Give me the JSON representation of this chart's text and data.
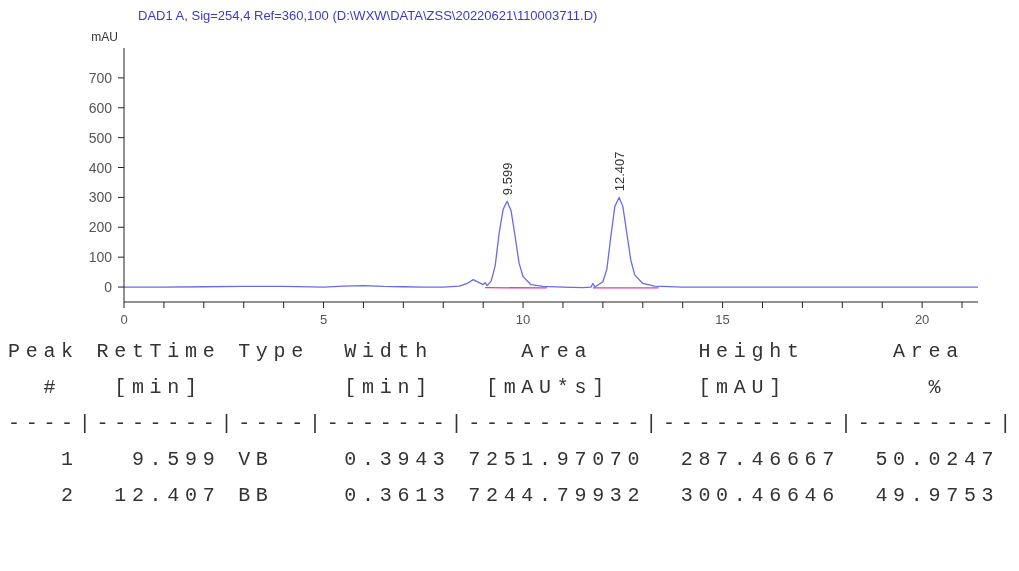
{
  "chart_data": {
    "type": "line",
    "title": "DAD1 A, Sig=254,4 Ref=360,100 (D:\\WXW\\DATA\\ZSS\\20220621\\110003711.D)",
    "ylabel": "mAU",
    "series": [
      {
        "color": "#6a6ae6",
        "x": [
          0,
          1,
          2,
          3,
          4,
          5,
          5.5,
          6,
          6.5,
          7,
          7.5,
          8,
          8.4,
          8.6,
          8.75,
          8.9,
          9.0,
          9.05,
          9.1,
          9.2,
          9.3,
          9.4,
          9.5,
          9.6,
          9.7,
          9.8,
          9.9,
          10.0,
          10.2,
          10.5,
          11,
          11.5,
          11.7,
          11.75,
          11.8,
          12.0,
          12.1,
          12.2,
          12.3,
          12.407,
          12.5,
          12.6,
          12.7,
          12.8,
          13.0,
          13.3,
          14,
          16,
          18,
          21.4
        ],
        "values": [
          0,
          0,
          1,
          2,
          2,
          0,
          3,
          5,
          2,
          1,
          0,
          0,
          3,
          12,
          25,
          15,
          8,
          15,
          5,
          20,
          70,
          180,
          260,
          287,
          255,
          170,
          80,
          35,
          8,
          2,
          0,
          -2,
          0,
          12,
          0,
          18,
          60,
          170,
          270,
          300,
          270,
          180,
          90,
          40,
          12,
          3,
          0,
          0,
          0,
          0
        ]
      },
      {
        "color": "#e0409a",
        "x": [
          9.05,
          10.6
        ],
        "values": [
          -2,
          -3
        ]
      },
      {
        "color": "#e0409a",
        "x": [
          11.75,
          13.4
        ],
        "values": [
          -3,
          -3
        ]
      }
    ],
    "xlim": [
      0,
      21.4
    ],
    "xticks": [
      0,
      {
        "value": 1,
        "label": null
      },
      {
        "value": 2,
        "label": null
      },
      {
        "value": 3,
        "label": null
      },
      {
        "value": 4,
        "label": null
      },
      5,
      {
        "value": 6,
        "label": null
      },
      {
        "value": 7,
        "label": null
      },
      {
        "value": 8,
        "label": null
      },
      {
        "value": 9,
        "label": null
      },
      10,
      {
        "value": 11,
        "label": null
      },
      {
        "value": 12,
        "label": null
      },
      {
        "value": 13,
        "label": null
      },
      {
        "value": 14,
        "label": null
      },
      15,
      {
        "value": 16,
        "label": null
      },
      {
        "value": 17,
        "label": null
      },
      {
        "value": 18,
        "label": null
      },
      {
        "value": 19,
        "label": null
      },
      20,
      {
        "value": 21,
        "label": null
      }
    ],
    "ylim": [
      -50,
      800
    ],
    "yticks": [
      0,
      100,
      200,
      300,
      400,
      500,
      600,
      700
    ],
    "grid": false,
    "marker": "none",
    "line_style": "solid",
    "annotations": [
      {
        "text": "9.599",
        "x": 9.599,
        "y": 287.5
      },
      {
        "text": "12.407",
        "x": 12.407,
        "y": 300.5
      },
      "Peak RetTime Type  Width     Area      Height     Area  ",
      "  #   [min]        [min]   [mAU*s]     [mAU]        %   ",
      "----|-------|----|-------|----------|----------|--------|",
      "   1   9.599 VB    0.3943 7251.97070  287.46667  50.0247",
      "   2  12.407 BB    0.3613 7244.79932  300.46646  49.9753"
    ]
  }
}
